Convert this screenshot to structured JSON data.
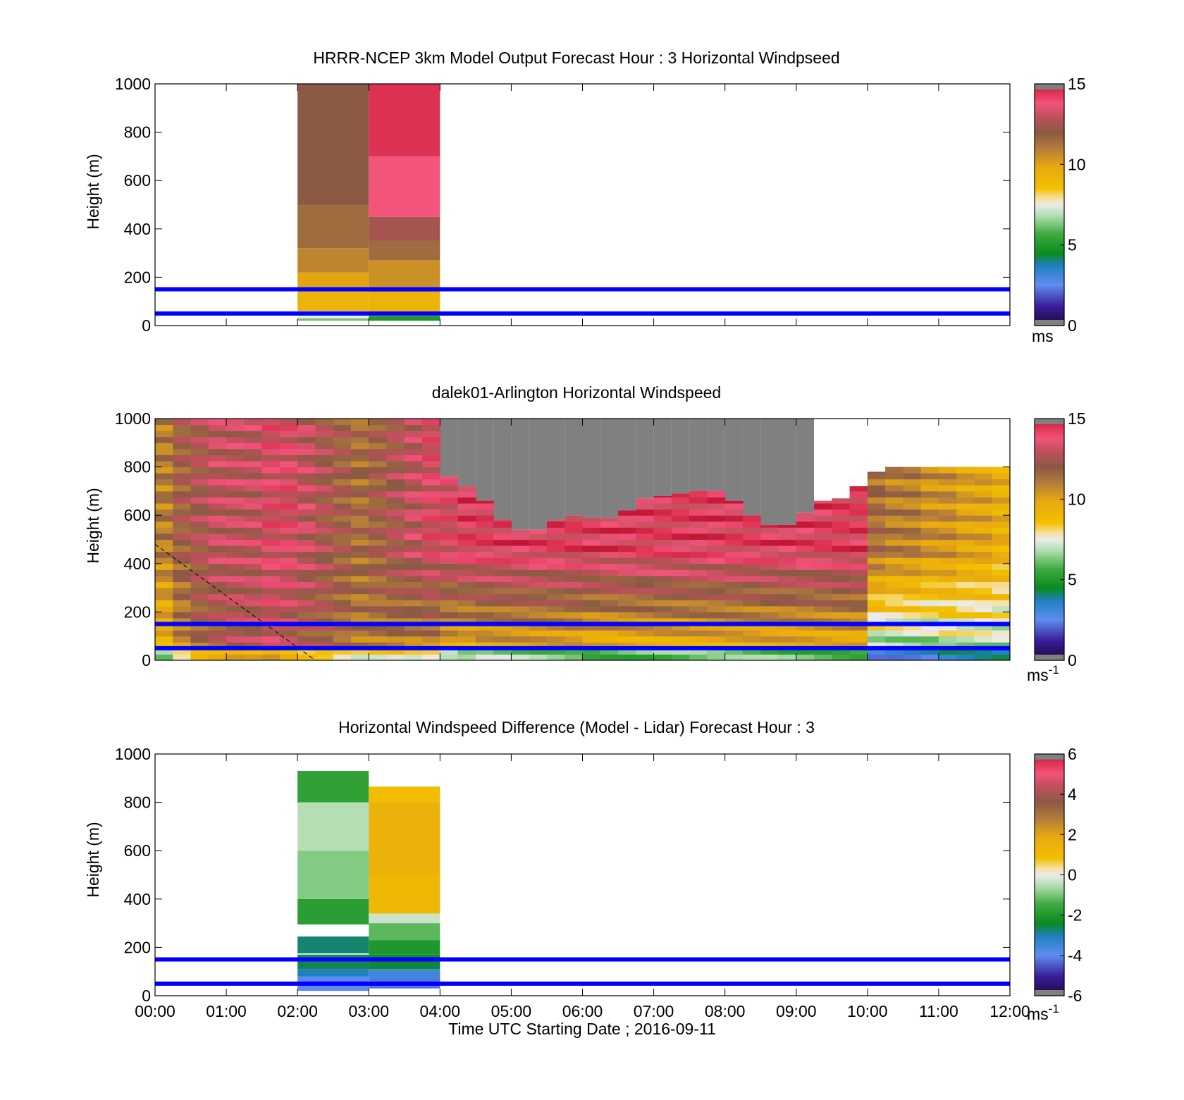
{
  "colors": {
    "reference_lines": "#0000ff",
    "no_data_above_cloud": "#808080",
    "background": "#ffffff"
  },
  "chart_data": [
    {
      "type": "heatmap",
      "title": "HRRR-NCEP 3km Model Output   Forecast Hour : 3 Horizontal Windpseed",
      "ylabel": "Height (m)",
      "ylim": [
        0,
        1000
      ],
      "yticks": [
        "0",
        "200",
        "400",
        "600",
        "800",
        "1000"
      ],
      "xlim": [
        "00:00",
        "12:00"
      ],
      "x_grid_ticks_hours": [
        0,
        1,
        2,
        3,
        4,
        5,
        6,
        7,
        8,
        9,
        10,
        11,
        12
      ],
      "colorbar": {
        "min": 0,
        "max": 15,
        "ticks": [
          "0",
          "5",
          "10",
          "15"
        ],
        "unit": "ms"
      },
      "reference_lines_m": [
        50,
        150
      ],
      "columns": [
        {
          "start": "02:00",
          "end": "03:00",
          "layers": [
            {
              "from": 20,
              "to": 30,
              "value": 6.2
            },
            {
              "from": 30,
              "to": 60,
              "value": 7.5
            },
            {
              "from": 60,
              "to": 140,
              "value": 9.3
            },
            {
              "from": 140,
              "to": 220,
              "value": 10.0
            },
            {
              "from": 220,
              "to": 320,
              "value": 10.8
            },
            {
              "from": 320,
              "to": 500,
              "value": 11.5
            },
            {
              "from": 500,
              "to": 1000,
              "value": 12.0
            }
          ]
        },
        {
          "start": "03:00",
          "end": "04:00",
          "layers": [
            {
              "from": 20,
              "to": 40,
              "value": 5.0
            },
            {
              "from": 40,
              "to": 140,
              "value": 9.2
            },
            {
              "from": 140,
              "to": 270,
              "value": 10.5
            },
            {
              "from": 270,
              "to": 350,
              "value": 11.5
            },
            {
              "from": 350,
              "to": 450,
              "value": 12.5
            },
            {
              "from": 450,
              "to": 700,
              "value": 13.8
            },
            {
              "from": 700,
              "to": 1000,
              "value": 14.5
            }
          ]
        }
      ]
    },
    {
      "type": "heatmap",
      "title": "dalek01-Arlington  Horizontal Windspeed",
      "ylabel": "Height (m)",
      "ylim": [
        0,
        1000
      ],
      "yticks": [
        "0",
        "200",
        "400",
        "600",
        "800",
        "1000"
      ],
      "xlim": [
        "00:00",
        "12:00"
      ],
      "x_grid_ticks_hours": [
        0,
        1,
        2,
        3,
        4,
        5,
        6,
        7,
        8,
        9,
        10,
        11,
        12
      ],
      "colorbar": {
        "min": 0,
        "max": 15,
        "ticks": [
          "0",
          "5",
          "10",
          "15"
        ],
        "unit": "ms",
        "unit_exp": "-1"
      },
      "reference_lines_m": [
        50,
        150
      ],
      "column_width_hours": 0.25,
      "grey_region_hours": [
        4.0,
        9.25
      ],
      "cloud_base_m": [
        1000,
        1000,
        1000,
        1000,
        1000,
        1000,
        1000,
        1000,
        1000,
        1000,
        1000,
        1000,
        1000,
        1000,
        1000,
        1000,
        760,
        720,
        660,
        580,
        540,
        540,
        580,
        600,
        590,
        590,
        620,
        670,
        680,
        690,
        700,
        700,
        660,
        600,
        560,
        560,
        610,
        660,
        670,
        720,
        780,
        800,
        800,
        800,
        800,
        800,
        800,
        800
      ],
      "profile_low_m": [
        9.0,
        10.5,
        11.5,
        12.0,
        12.5,
        12.5,
        13.0,
        12.5,
        12.0,
        12.0,
        11.5,
        11.0,
        11.0,
        11.0,
        10.5,
        10.5,
        9.5,
        9.0,
        9.5,
        9.5,
        9.5,
        9.5,
        9.5,
        9.5,
        9.0,
        9.0,
        9.0,
        9.0,
        9.0,
        9.0,
        9.0,
        9.0,
        9.0,
        9.0,
        9.0,
        9.0,
        9.0,
        9.0,
        9.0,
        9.0,
        6.0,
        6.0,
        6.0,
        6.0,
        6.5,
        6.5,
        6.5,
        6.5
      ],
      "profile_high_m": [
        11.0,
        12.0,
        12.5,
        13.0,
        13.0,
        13.0,
        13.5,
        13.5,
        13.0,
        12.5,
        12.0,
        11.5,
        12.0,
        12.5,
        13.0,
        13.5,
        13.5,
        14.0,
        14.0,
        14.0,
        14.0,
        14.0,
        14.0,
        14.0,
        14.0,
        14.0,
        14.0,
        14.0,
        14.0,
        14.0,
        14.0,
        14.0,
        14.0,
        14.0,
        14.0,
        14.0,
        14.0,
        14.0,
        14.0,
        14.0,
        11.5,
        11.0,
        11.0,
        10.5,
        10.5,
        10.0,
        10.0,
        9.5
      ]
    },
    {
      "type": "heatmap",
      "title": "Horizontal Windspeed Difference (Model - Lidar) Forecast Hour : 3",
      "ylabel": "Height (m)",
      "xlabel": "Time UTC  Starting Date ; 2016-09-11",
      "ylim": [
        0,
        1000
      ],
      "yticks": [
        "0",
        "200",
        "400",
        "600",
        "800",
        "1000"
      ],
      "xticks": [
        "00:00",
        "01:00",
        "02:00",
        "03:00",
        "04:00",
        "05:00",
        "06:00",
        "07:00",
        "08:00",
        "09:00",
        "10:00",
        "11:00",
        "12:00"
      ],
      "colorbar": {
        "min": -6,
        "max": 6,
        "ticks": [
          "-6",
          "-4",
          "-2",
          "0",
          "2",
          "4",
          "6"
        ],
        "unit": "ms",
        "unit_exp": "-1"
      },
      "reference_lines_m": [
        50,
        150
      ],
      "columns": [
        {
          "start": "02:00",
          "end": "03:00",
          "layers": [
            {
              "from": 20,
              "to": 80,
              "value": -4.0
            },
            {
              "from": 80,
              "to": 110,
              "value": -3.0
            },
            {
              "from": 110,
              "to": 170,
              "value": -2.6
            },
            {
              "from": 175,
              "to": 245,
              "value": -2.7
            },
            {
              "from": 295,
              "to": 400,
              "value": -1.8
            },
            {
              "from": 400,
              "to": 600,
              "value": -0.9
            },
            {
              "from": 600,
              "to": 800,
              "value": -0.5
            },
            {
              "from": 800,
              "to": 930,
              "value": -1.7
            }
          ]
        },
        {
          "start": "03:00",
          "end": "04:00",
          "layers": [
            {
              "from": 30,
              "to": 70,
              "value": -4.2
            },
            {
              "from": 70,
              "to": 110,
              "value": -3.5
            },
            {
              "from": 110,
              "to": 170,
              "value": -2.5
            },
            {
              "from": 170,
              "to": 230,
              "value": -2.0
            },
            {
              "from": 230,
              "to": 300,
              "value": -1.2
            },
            {
              "from": 300,
              "to": 340,
              "value": -0.3
            },
            {
              "from": 340,
              "to": 500,
              "value": 1.2
            },
            {
              "from": 500,
              "to": 800,
              "value": 1.5
            },
            {
              "from": 800,
              "to": 865,
              "value": 1.0
            }
          ]
        }
      ]
    }
  ]
}
